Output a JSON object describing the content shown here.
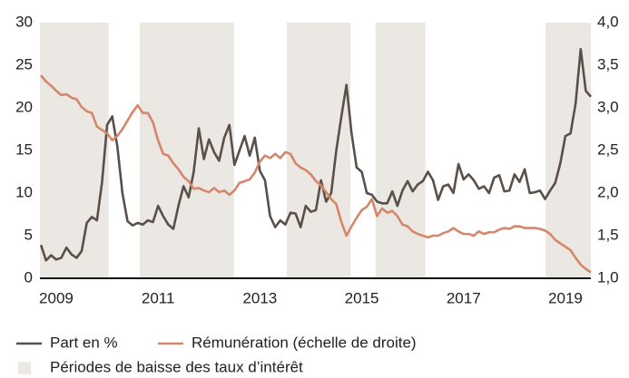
{
  "chart_data": {
    "type": "line",
    "x": [
      2008.7,
      2008.8,
      2008.9,
      2009.0,
      2009.1,
      2009.2,
      2009.3,
      2009.4,
      2009.5,
      2009.6,
      2009.7,
      2009.8,
      2009.9,
      2010.0,
      2010.1,
      2010.2,
      2010.3,
      2010.4,
      2010.5,
      2010.6,
      2010.7,
      2010.8,
      2010.9,
      2011.0,
      2011.1,
      2011.2,
      2011.3,
      2011.4,
      2011.5,
      2011.6,
      2011.7,
      2011.8,
      2011.9,
      2012.0,
      2012.1,
      2012.2,
      2012.3,
      2012.4,
      2012.5,
      2012.6,
      2012.7,
      2012.8,
      2012.9,
      2013.0,
      2013.1,
      2013.2,
      2013.3,
      2013.4,
      2013.5,
      2013.6,
      2013.7,
      2013.8,
      2013.9,
      2014.0,
      2014.1,
      2014.2,
      2014.3,
      2014.4,
      2014.5,
      2014.6,
      2014.7,
      2014.8,
      2014.9,
      2015.0,
      2015.1,
      2015.2,
      2015.3,
      2015.4,
      2015.5,
      2015.6,
      2015.7,
      2015.8,
      2015.9,
      2016.0,
      2016.1,
      2016.2,
      2016.3,
      2016.4,
      2016.5,
      2016.6,
      2016.7,
      2016.8,
      2016.9,
      2017.0,
      2017.1,
      2017.2,
      2017.3,
      2017.4,
      2017.5,
      2017.6,
      2017.7,
      2017.8,
      2017.9,
      2018.0,
      2018.1,
      2018.2,
      2018.3,
      2018.4,
      2018.5,
      2018.6,
      2018.7,
      2018.8,
      2018.9,
      2019.0,
      2019.1,
      2019.2,
      2019.3,
      2019.4,
      2019.5
    ],
    "series": [
      {
        "name": "Part en %",
        "color": "#5a4f49",
        "values": [
          3.9,
          2.1,
          2.7,
          2.2,
          2.4,
          3.6,
          2.8,
          2.4,
          3.2,
          6.5,
          7.2,
          6.8,
          11.3,
          18,
          19,
          15.5,
          10,
          6.7,
          6.2,
          6.5,
          6.3,
          6.8,
          6.6,
          8.5,
          7.3,
          6.3,
          5.8,
          8.5,
          10.8,
          9.5,
          12.5,
          17.6,
          14,
          16.3,
          14.8,
          13.8,
          16.5,
          18,
          13.3,
          15,
          16.7,
          14.4,
          16.5,
          12.6,
          11.5,
          7.3,
          6,
          6.8,
          6.3,
          7.7,
          7.6,
          6,
          8.5,
          7.8,
          8,
          11.5,
          9,
          10,
          15,
          19,
          22.7,
          17,
          13,
          12.5,
          10,
          9.8,
          9,
          8.8,
          8.8,
          10.2,
          8.5,
          10.3,
          11.4,
          10.2,
          11,
          11.4,
          12.5,
          11.5,
          9.2,
          10.8,
          11,
          10,
          13.4,
          11.6,
          12.2,
          11.5,
          10.5,
          10.8,
          10,
          11.8,
          12.1,
          10.2,
          10.3,
          12.2,
          11.3,
          12.8,
          10,
          10.1,
          10.3,
          9.3,
          10.3,
          11.2,
          13.5,
          16.7,
          17,
          20.5,
          26.9,
          22,
          21.3
        ]
      },
      {
        "name": "Rémunération (échelle de droite)",
        "color": "#d4876a",
        "axis": "y2",
        "values": [
          3.38,
          3.31,
          3.26,
          3.2,
          3.15,
          3.16,
          3.12,
          3.1,
          3.01,
          2.96,
          2.94,
          2.78,
          2.74,
          2.7,
          2.62,
          2.67,
          2.75,
          2.85,
          2.95,
          3.03,
          2.94,
          2.94,
          2.83,
          2.62,
          2.46,
          2.44,
          2.35,
          2.28,
          2.19,
          2.14,
          2.05,
          2.06,
          2.03,
          2.01,
          2.06,
          2.01,
          2.03,
          1.98,
          2.03,
          2.12,
          2.14,
          2.16,
          2.24,
          2.37,
          2.44,
          2.41,
          2.46,
          2.41,
          2.48,
          2.46,
          2.35,
          2.3,
          2.27,
          2.22,
          2.14,
          2.09,
          2.01,
          1.93,
          1.87,
          1.66,
          1.5,
          1.61,
          1.71,
          1.8,
          1.84,
          1.93,
          1.73,
          1.82,
          1.77,
          1.79,
          1.73,
          1.63,
          1.61,
          1.55,
          1.52,
          1.5,
          1.48,
          1.5,
          1.5,
          1.53,
          1.55,
          1.59,
          1.55,
          1.52,
          1.52,
          1.5,
          1.55,
          1.52,
          1.54,
          1.54,
          1.57,
          1.59,
          1.58,
          1.61,
          1.61,
          1.59,
          1.59,
          1.59,
          1.58,
          1.56,
          1.52,
          1.45,
          1.41,
          1.37,
          1.33,
          1.24,
          1.16,
          1.11,
          1.07
        ]
      }
    ],
    "periods_label": "Périodes de baisse des taux d’intérêt",
    "periods_color": "#ebe7e3",
    "periods": [
      [
        2008.68,
        2010.03
      ],
      [
        2010.64,
        2012.49
      ],
      [
        2013.53,
        2014.78
      ],
      [
        2015.27,
        2016.25
      ],
      [
        2018.61,
        2019.5
      ]
    ],
    "xlim": [
      2008.68,
      2019.5
    ],
    "xticks": [
      2009,
      2011,
      2013,
      2015,
      2017,
      2019
    ],
    "ylim": [
      0,
      30
    ],
    "yticks": [
      0,
      5,
      10,
      15,
      20,
      25,
      30
    ],
    "y2lim": [
      1,
      4
    ],
    "y2ticks": [
      {
        "value": 1,
        "label": "1,0"
      },
      {
        "value": 1.5,
        "label": "1,5"
      },
      {
        "value": 2,
        "label": "2,0"
      },
      {
        "value": 2.5,
        "label": "2,5"
      },
      {
        "value": 3,
        "label": "3,0"
      },
      {
        "value": 3.5,
        "label": "3,5"
      },
      {
        "value": 4,
        "label": "4,0"
      }
    ]
  }
}
